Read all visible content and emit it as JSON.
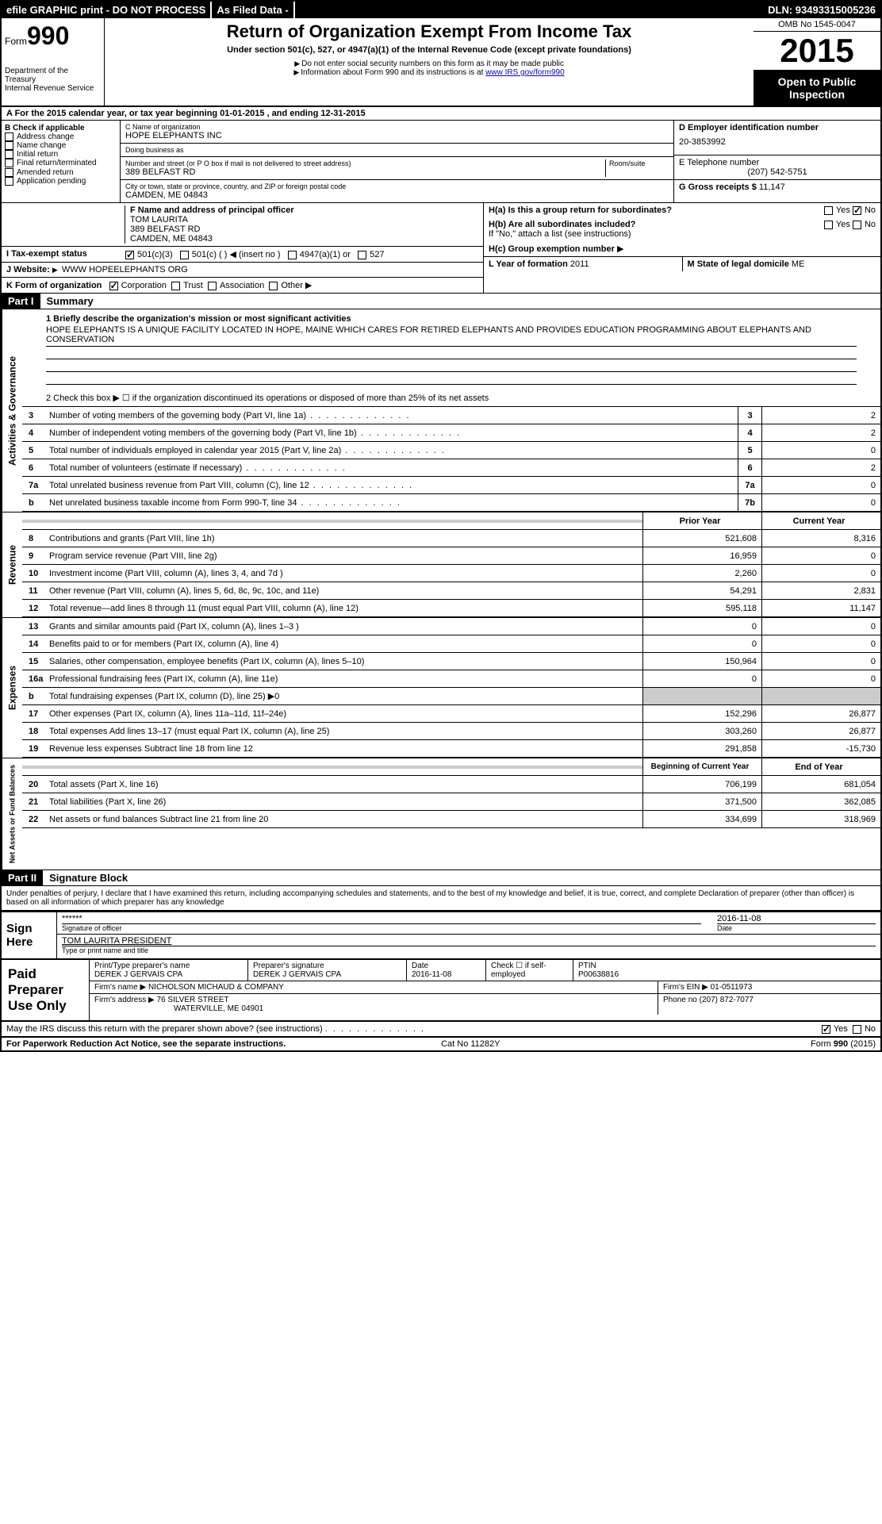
{
  "topbar": {
    "efile": "efile GRAPHIC print - DO NOT PROCESS",
    "asfiled": "As Filed Data -",
    "dln": "DLN: 93493315005236"
  },
  "header": {
    "form_label": "Form",
    "form_no": "990",
    "dept": "Department of the Treasury",
    "irs": "Internal Revenue Service",
    "title": "Return of Organization Exempt From Income Tax",
    "subtitle": "Under section 501(c), 527, or 4947(a)(1) of the Internal Revenue Code (except private foundations)",
    "note1": "Do not enter social security numbers on this form as it may be made public",
    "note2": "Information about Form 990 and its instructions is at ",
    "note2_link": "www IRS gov/form990",
    "omb": "OMB No 1545-0047",
    "year": "2015",
    "inspect": "Open to Public Inspection"
  },
  "section_a": "A  For the 2015 calendar year, or tax year beginning 01-01-2015    , and ending 12-31-2015",
  "b": {
    "title": "B Check if applicable",
    "opts": [
      "Address change",
      "Name change",
      "Initial return",
      "Final return/terminated",
      "Amended return",
      "Application pending"
    ]
  },
  "c": {
    "name_lbl": "C Name of organization",
    "name": "HOPE ELEPHANTS INC",
    "dba_lbl": "Doing business as",
    "dba": "",
    "street_lbl": "Number and street (or P O  box if mail is not delivered to street address)",
    "room_lbl": "Room/suite",
    "street": "389 BELFAST RD",
    "city_lbl": "City or town, state or province, country, and ZIP or foreign postal code",
    "city": "CAMDEN, ME  04843"
  },
  "d": {
    "lbl": "D Employer identification number",
    "val": "20-3853992"
  },
  "e": {
    "lbl": "E Telephone number",
    "val": "(207) 542-5751"
  },
  "g": {
    "lbl": "G Gross receipts $",
    "val": "11,147"
  },
  "f": {
    "lbl": "F Name and address of principal officer",
    "name": "TOM LAURITA",
    "addr1": "389 BELFAST RD",
    "addr2": "CAMDEN, ME  04843"
  },
  "h": {
    "a": "H(a)  Is this a group return for subordinates?",
    "a_ans": "No",
    "b": "H(b) Are all subordinates included?",
    "b_note": "If \"No,\" attach a list  (see instructions)",
    "c": "H(c)   Group exemption number"
  },
  "i": {
    "lbl": "I  Tax-exempt status",
    "o1": "501(c)(3)",
    "o2": "501(c) (  )",
    "o2b": "(insert no )",
    "o3": "4947(a)(1) or",
    "o4": "527"
  },
  "j": {
    "lbl": "J  Website:",
    "val": "WWW HOPEELEPHANTS ORG"
  },
  "k": {
    "lbl": "K Form of organization",
    "o1": "Corporation",
    "o2": "Trust",
    "o3": "Association",
    "o4": "Other"
  },
  "l": {
    "lbl": "L Year of formation",
    "val": "2011"
  },
  "m": {
    "lbl": "M State of legal domicile",
    "val": "ME"
  },
  "part1": {
    "hdr": "Part I",
    "title": "Summary",
    "q1": "1 Briefly describe the organization's mission or most significant activities",
    "mission": "HOPE ELEPHANTS IS A UNIQUE FACILITY LOCATED IN HOPE, MAINE WHICH CARES FOR RETIRED ELEPHANTS AND PROVIDES EDUCATION PROGRAMMING ABOUT ELEPHANTS AND CONSERVATION",
    "q2": "2 Check this box ▶ ☐ if the organization discontinued its operations or disposed of more than 25% of its net assets",
    "gov_label": "Activities & Governance",
    "rev_label": "Revenue",
    "exp_label": "Expenses",
    "net_label": "Net Assets or Fund Balances",
    "lines_gov": [
      {
        "n": "3",
        "d": "Number of voting members of the governing body (Part VI, line 1a)",
        "b": "3",
        "v": "2"
      },
      {
        "n": "4",
        "d": "Number of independent voting members of the governing body (Part VI, line 1b)",
        "b": "4",
        "v": "2"
      },
      {
        "n": "5",
        "d": "Total number of individuals employed in calendar year 2015 (Part V, line 2a)",
        "b": "5",
        "v": "0"
      },
      {
        "n": "6",
        "d": "Total number of volunteers (estimate if necessary)",
        "b": "6",
        "v": "2"
      },
      {
        "n": "7a",
        "d": "Total unrelated business revenue from Part VIII, column (C), line 12",
        "b": "7a",
        "v": "0"
      },
      {
        "n": "b",
        "d": "Net unrelated business taxable income from Form 990-T, line 34",
        "b": "7b",
        "v": "0"
      }
    ],
    "col_py": "Prior Year",
    "col_cy": "Current Year",
    "lines_rev": [
      {
        "n": "8",
        "d": "Contributions and grants (Part VIII, line 1h)",
        "py": "521,608",
        "cy": "8,316"
      },
      {
        "n": "9",
        "d": "Program service revenue (Part VIII, line 2g)",
        "py": "16,959",
        "cy": "0"
      },
      {
        "n": "10",
        "d": "Investment income (Part VIII, column (A), lines 3, 4, and 7d )",
        "py": "2,260",
        "cy": "0"
      },
      {
        "n": "11",
        "d": "Other revenue (Part VIII, column (A), lines 5, 6d, 8c, 9c, 10c, and 11e)",
        "py": "54,291",
        "cy": "2,831"
      },
      {
        "n": "12",
        "d": "Total revenue—add lines 8 through 11 (must equal Part VIII, column (A), line 12)",
        "py": "595,118",
        "cy": "11,147"
      }
    ],
    "lines_exp": [
      {
        "n": "13",
        "d": "Grants and similar amounts paid (Part IX, column (A), lines 1–3 )",
        "py": "0",
        "cy": "0"
      },
      {
        "n": "14",
        "d": "Benefits paid to or for members (Part IX, column (A), line 4)",
        "py": "0",
        "cy": "0"
      },
      {
        "n": "15",
        "d": "Salaries, other compensation, employee benefits (Part IX, column (A), lines 5–10)",
        "py": "150,964",
        "cy": "0"
      },
      {
        "n": "16a",
        "d": "Professional fundraising fees (Part IX, column (A), line 11e)",
        "py": "0",
        "cy": "0"
      },
      {
        "n": "b",
        "d": "Total fundraising expenses (Part IX, column (D), line 25) ▶0",
        "py": "",
        "cy": "",
        "shade": true
      },
      {
        "n": "17",
        "d": "Other expenses (Part IX, column (A), lines 11a–11d, 11f–24e)",
        "py": "152,296",
        "cy": "26,877"
      },
      {
        "n": "18",
        "d": "Total expenses  Add lines 13–17 (must equal Part IX, column (A), line 25)",
        "py": "303,260",
        "cy": "26,877"
      },
      {
        "n": "19",
        "d": "Revenue less expenses  Subtract line 18 from line 12",
        "py": "291,858",
        "cy": "-15,730"
      }
    ],
    "col_boy": "Beginning of Current Year",
    "col_eoy": "End of Year",
    "lines_net": [
      {
        "n": "20",
        "d": "Total assets (Part X, line 16)",
        "py": "706,199",
        "cy": "681,054"
      },
      {
        "n": "21",
        "d": "Total liabilities (Part X, line 26)",
        "py": "371,500",
        "cy": "362,085"
      },
      {
        "n": "22",
        "d": "Net assets or fund balances  Subtract line 21 from line 20",
        "py": "334,699",
        "cy": "318,969"
      }
    ]
  },
  "part2": {
    "hdr": "Part II",
    "title": "Signature Block",
    "perjury": "Under penalties of perjury, I declare that I have examined this return, including accompanying schedules and statements, and to the best of my knowledge and belief, it is true, correct, and complete  Declaration of preparer (other than officer) is based on all information of which preparer has any knowledge",
    "sign_here": "Sign Here",
    "sig_stars": "******",
    "sig_officer_lbl": "Signature of officer",
    "sig_date": "2016-11-08",
    "sig_date_lbl": "Date",
    "officer_name": "TOM LAURITA PRESIDENT",
    "officer_name_lbl": "Type or print name and title",
    "paid": "Paid Preparer Use Only",
    "prep_name_lbl": "Print/Type preparer's name",
    "prep_name": "DEREK J GERVAIS CPA",
    "prep_sig_lbl": "Preparer's signature",
    "prep_sig": "DEREK J GERVAIS CPA",
    "prep_date_lbl": "Date",
    "prep_date": "2016-11-08",
    "prep_self": "Check ☐ if self-employed",
    "ptin_lbl": "PTIN",
    "ptin": "P00638816",
    "firm_name_lbl": "Firm's name     ▶",
    "firm_name": "NICHOLSON MICHAUD & COMPANY",
    "firm_ein_lbl": "Firm's EIN ▶",
    "firm_ein": "01-0511973",
    "firm_addr_lbl": "Firm's address ▶",
    "firm_addr": "76 SILVER STREET",
    "firm_city": "WATERVILLE, ME  04901",
    "firm_phone_lbl": "Phone no",
    "firm_phone": "(207) 872-7077",
    "discuss": "May the IRS discuss this return with the preparer shown above? (see instructions)",
    "yes": "Yes",
    "no": "No"
  },
  "footer": {
    "left": "For Paperwork Reduction Act Notice, see the separate instructions.",
    "mid": "Cat No 11282Y",
    "right": "Form 990 (2015)"
  }
}
